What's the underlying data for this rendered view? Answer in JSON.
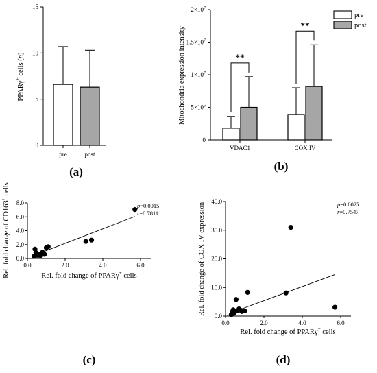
{
  "chart_data": [
    {
      "type": "bar",
      "panel_label": "(a)",
      "ylabel_main": "PPARγ",
      "ylabel_sup": "+",
      "ylabel_rest": " cells (",
      "ylabel_italic": "n",
      "ylabel_close": ")",
      "categories": [
        "pre",
        "post"
      ],
      "values": [
        6.6,
        6.3
      ],
      "errors": [
        4.1,
        4.0
      ],
      "colors": [
        "#ffffff",
        "#a6a6a6"
      ],
      "ylim": [
        0,
        15
      ],
      "yticks": [
        "0",
        "5",
        "10",
        "15"
      ]
    },
    {
      "type": "bar",
      "panel_label": "(b)",
      "ylabel": "Mitochondria expression intensity",
      "categories": [
        "VDAC1",
        "COX IV"
      ],
      "series": [
        {
          "name": "pre",
          "values": [
            1800000,
            3900000
          ],
          "errors": [
            1800000,
            4100000
          ],
          "color": "#ffffff"
        },
        {
          "name": "post",
          "values": [
            5000000,
            8200000
          ],
          "errors": [
            4700000,
            6400000
          ],
          "color": "#a6a6a6"
        }
      ],
      "ylim": [
        0,
        20000000
      ],
      "yticks": [
        {
          "base": "0",
          "exp": ""
        },
        {
          "base": "5×10",
          "exp": "6"
        },
        {
          "base": "1×10",
          "exp": "7"
        },
        {
          "base": "1.5×10",
          "exp": "7"
        },
        {
          "base": "2×10",
          "exp": "7"
        }
      ],
      "significance": [
        "**",
        "**"
      ],
      "legend_position": "top-right"
    },
    {
      "type": "scatter",
      "panel_label": "(c)",
      "xlabel_main": "Rel. fold change of PPARγ",
      "xlabel_sup": "+",
      "xlabel_rest": " cells",
      "ylabel_main": "Rel. fold change of CD163",
      "ylabel_sup": "+",
      "ylabel_rest": " cells",
      "p_label": "p",
      "p_value": "=0.0015",
      "r_label": "r",
      "r_value": "=0.7811",
      "xlim": [
        0,
        6
      ],
      "ylim": [
        0,
        8
      ],
      "xticks": [
        "0.0",
        "2.0",
        "4.0",
        "6.0"
      ],
      "yticks": [
        "0.0",
        "2.0",
        "4.0",
        "6.0",
        "8.0"
      ],
      "points": [
        [
          0.35,
          0.3
        ],
        [
          0.4,
          0.4
        ],
        [
          0.4,
          1.35
        ],
        [
          0.45,
          0.85
        ],
        [
          0.55,
          0.45
        ],
        [
          0.6,
          0.55
        ],
        [
          0.7,
          0.4
        ],
        [
          0.75,
          0.65
        ],
        [
          0.8,
          0.9
        ],
        [
          0.9,
          0.6
        ],
        [
          1.0,
          1.55
        ],
        [
          1.1,
          1.7
        ],
        [
          3.1,
          2.45
        ],
        [
          3.4,
          2.65
        ],
        [
          5.7,
          7.05
        ]
      ],
      "fit": [
        [
          0.35,
          0.45
        ],
        [
          5.7,
          6.05
        ]
      ]
    },
    {
      "type": "scatter",
      "panel_label": "(d)",
      "xlabel_main": "Rel. fold change of PPARγ",
      "xlabel_sup": "+",
      "xlabel_rest": " cells",
      "ylabel": "Rel. fold change of COX IV expression",
      "p_label": "p",
      "p_value": "=0.0025",
      "r_label": "r",
      "r_value": "=0.7547",
      "xlim": [
        0,
        6
      ],
      "ylim": [
        0,
        40
      ],
      "xticks": [
        "0.0",
        "2.0",
        "4.0",
        "6.0"
      ],
      "yticks": [
        "0.0",
        "10.0",
        "20.0",
        "30.0",
        "40.0"
      ],
      "points": [
        [
          0.3,
          0.5
        ],
        [
          0.35,
          1.5
        ],
        [
          0.4,
          2.2
        ],
        [
          0.45,
          1.0
        ],
        [
          0.55,
          5.8
        ],
        [
          0.6,
          1.8
        ],
        [
          0.7,
          2.5
        ],
        [
          0.8,
          2.0
        ],
        [
          0.85,
          1.6
        ],
        [
          1.0,
          1.8
        ],
        [
          1.15,
          8.3
        ],
        [
          3.15,
          8.1
        ],
        [
          3.4,
          31.0
        ],
        [
          5.7,
          3.1
        ]
      ],
      "fit": [
        [
          0.3,
          1.2
        ],
        [
          5.7,
          14.5
        ]
      ]
    }
  ]
}
